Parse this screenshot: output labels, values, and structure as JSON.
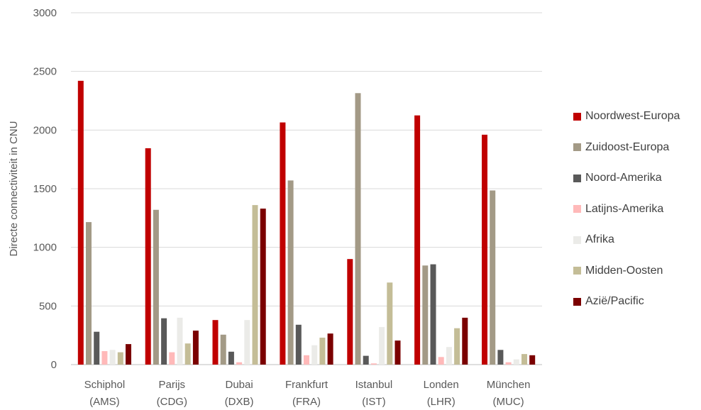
{
  "chart_data": {
    "type": "bar",
    "title": "",
    "xlabel": "",
    "ylabel": "Directe connectiviteit in CNU",
    "ylim": [
      0,
      3000
    ],
    "yticks": [
      0,
      500,
      1000,
      1500,
      2000,
      2500,
      3000
    ],
    "grid": true,
    "legend_position": "right",
    "categories": [
      [
        "Schiphol",
        "(AMS)"
      ],
      [
        "Parijs",
        "(CDG)"
      ],
      [
        "Dubai",
        "(DXB)"
      ],
      [
        "Frankfurt",
        "(FRA)"
      ],
      [
        "Istanbul",
        "(IST)"
      ],
      [
        "Londen",
        "(LHR)"
      ],
      [
        "München",
        "(MUC)"
      ]
    ],
    "series": [
      {
        "name": "Noordwest-Europa",
        "color": "#c00000",
        "values": [
          2420,
          1845,
          380,
          2065,
          900,
          2125,
          1960
        ]
      },
      {
        "name": "Zuidoost-Europa",
        "color": "#a39a86",
        "values": [
          1215,
          1320,
          255,
          1570,
          2315,
          845,
          1485
        ]
      },
      {
        "name": "Noord-Amerika",
        "color": "#595959",
        "values": [
          280,
          395,
          110,
          340,
          75,
          855,
          125
        ]
      },
      {
        "name": "Latijns-Amerika",
        "color": "#ffb9b9",
        "values": [
          115,
          105,
          20,
          80,
          10,
          65,
          20
        ]
      },
      {
        "name": "Afrika",
        "color": "#ebebe8",
        "values": [
          125,
          400,
          380,
          165,
          320,
          150,
          45
        ]
      },
      {
        "name": "Midden-Oosten",
        "color": "#c4bd97",
        "values": [
          105,
          180,
          1360,
          230,
          700,
          310,
          90
        ]
      },
      {
        "name": "Azië/Pacific",
        "color": "#7b0000",
        "values": [
          175,
          290,
          1330,
          265,
          205,
          400,
          80
        ]
      }
    ]
  }
}
